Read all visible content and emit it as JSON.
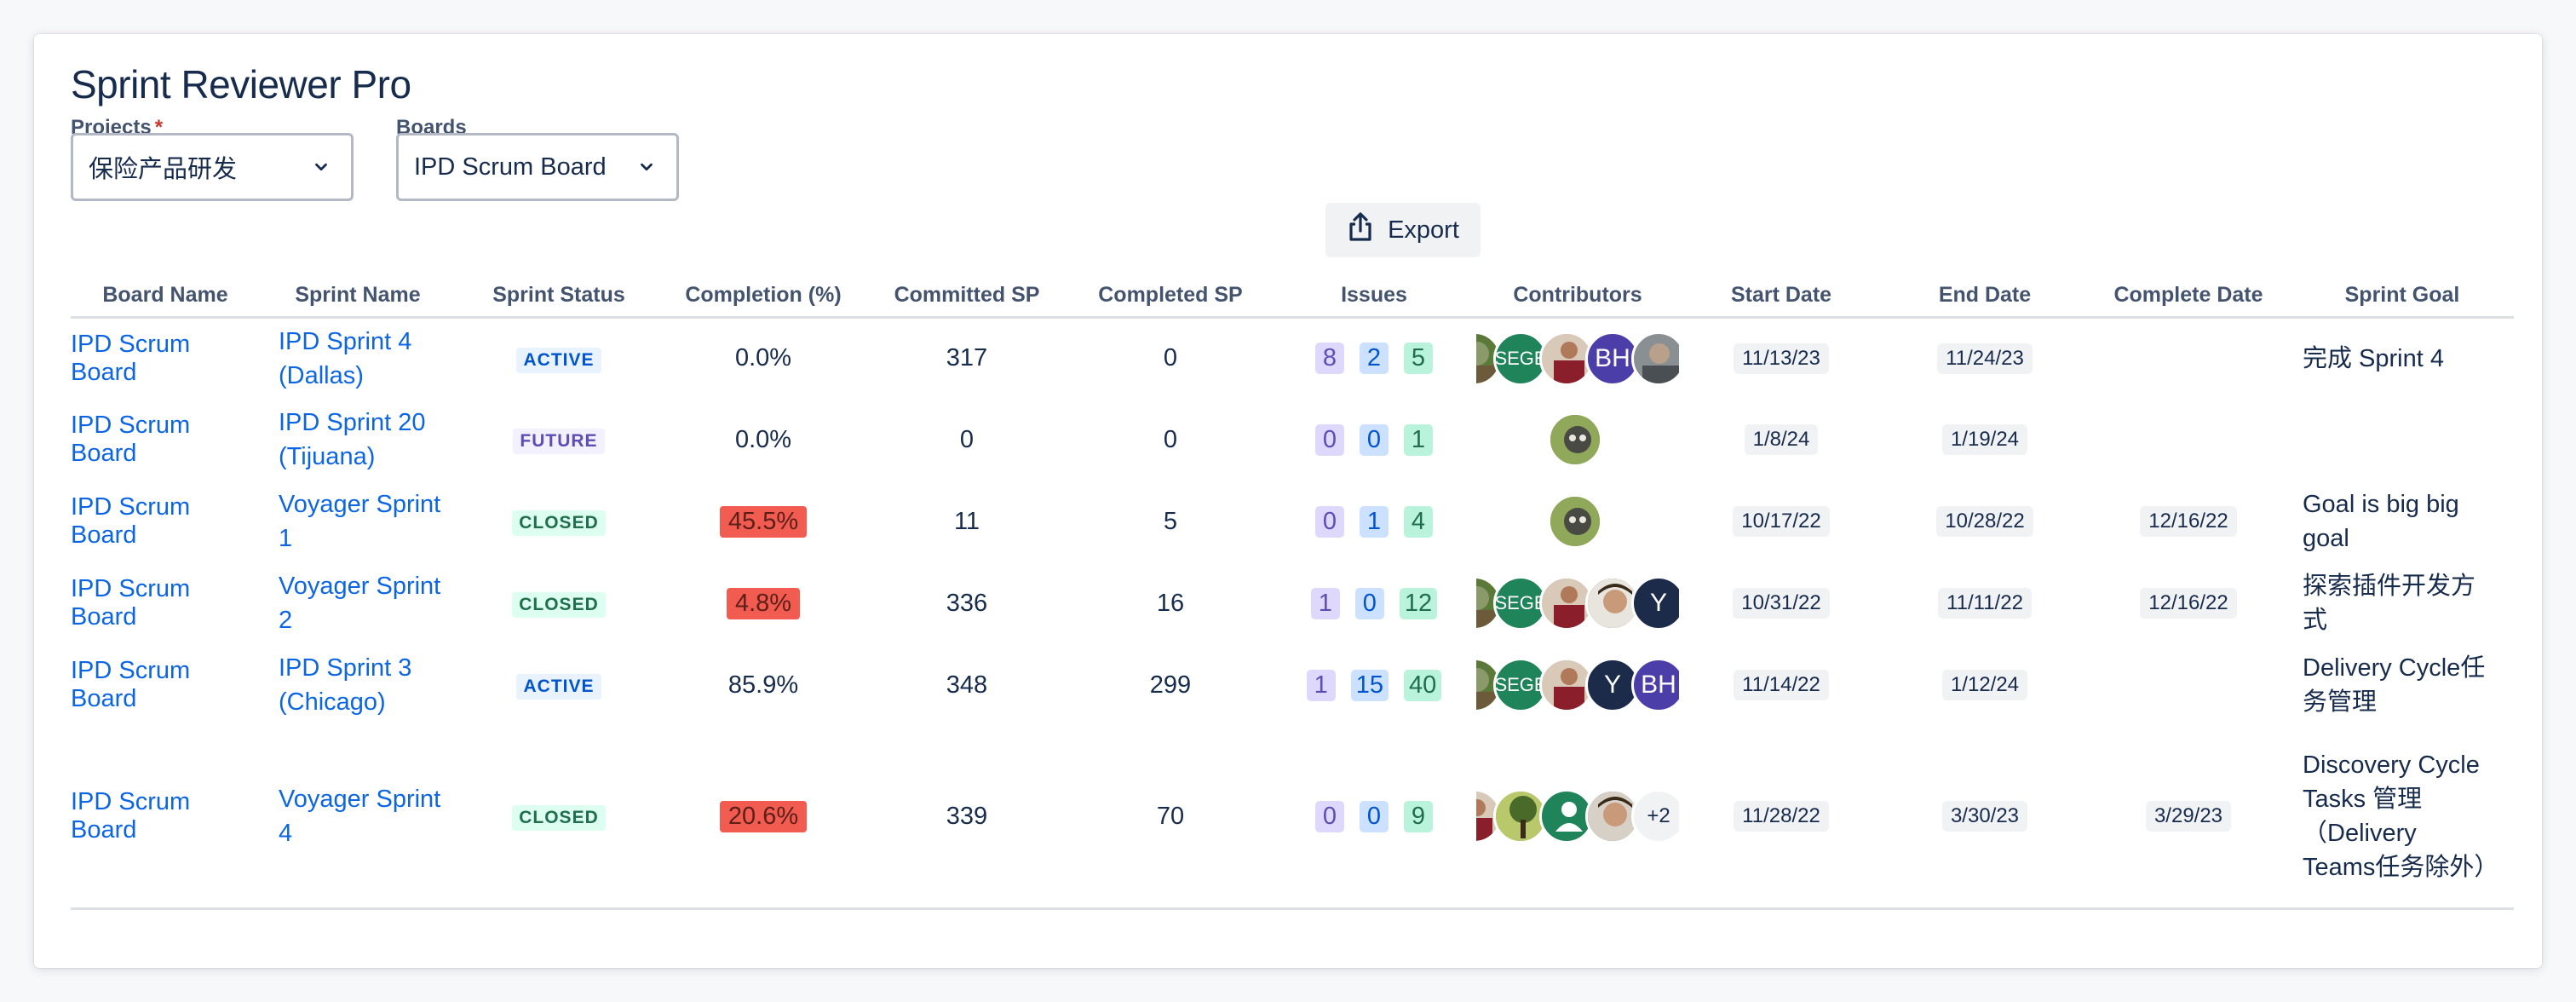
{
  "app": {
    "title": "Sprint Reviewer Pro"
  },
  "filters": {
    "projects_label": "Projects",
    "projects_required_mark": "*",
    "projects_value": "保险产品研发",
    "boards_label": "Boards",
    "boards_value": "IPD Scrum Board",
    "export_label": "Export"
  },
  "table": {
    "headers": [
      "Board Name",
      "Sprint Name",
      "Sprint Status",
      "Completion (%)",
      "Committed SP",
      "Completed SP",
      "Issues",
      "Contributors",
      "Start Date",
      "End Date",
      "Complete Date",
      "Sprint Goal"
    ],
    "rows": [
      {
        "board": "IPD Scrum Board",
        "sprint": "IPD Sprint 4 (Dallas)",
        "status": "ACTIVE",
        "completion": "0.0%",
        "committed": "317",
        "completed": "0",
        "issues": [
          "8",
          "2",
          "5"
        ],
        "contrib_labels": [
          "BH"
        ],
        "contrib_brand": "SEGE",
        "start": "11/13/23",
        "end": "11/24/23",
        "complete": "",
        "goal": "完成 Sprint 4"
      },
      {
        "board": "IPD Scrum Board",
        "sprint": "IPD Sprint 20 (Tijuana)",
        "status": "FUTURE",
        "completion": "0.0%",
        "committed": "0",
        "completed": "0",
        "issues": [
          "0",
          "0",
          "1"
        ],
        "start": "1/8/24",
        "end": "1/19/24",
        "complete": "",
        "goal": ""
      },
      {
        "board": "IPD Scrum Board",
        "sprint": "Voyager Sprint 1",
        "status": "CLOSED",
        "completion": "45.5%",
        "committed": "11",
        "completed": "5",
        "issues": [
          "0",
          "1",
          "4"
        ],
        "start": "10/17/22",
        "end": "10/28/22",
        "complete": "12/16/22",
        "goal": "Goal is big big goal"
      },
      {
        "board": "IPD Scrum Board",
        "sprint": "Voyager Sprint 2",
        "status": "CLOSED",
        "completion": "4.8%",
        "committed": "336",
        "completed": "16",
        "issues": [
          "1",
          "0",
          "12"
        ],
        "contrib_brand": "SEGE",
        "contrib_labels": [
          "Y"
        ],
        "start": "10/31/22",
        "end": "11/11/22",
        "complete": "12/16/22",
        "goal": "探索插件开发方式"
      },
      {
        "board": "IPD Scrum Board",
        "sprint": "IPD Sprint 3 (Chicago)",
        "status": "ACTIVE",
        "completion": "85.9%",
        "committed": "348",
        "completed": "299",
        "issues": [
          "1",
          "15",
          "40"
        ],
        "contrib_brand": "SEGE",
        "contrib_labels": [
          "Y",
          "BH"
        ],
        "start": "11/14/22",
        "end": "1/12/24",
        "complete": "",
        "goal": "Delivery Cycle任务管理"
      },
      {
        "board": "IPD Scrum Board",
        "sprint": "Voyager Sprint 4",
        "status": "CLOSED",
        "completion": "20.6%",
        "committed": "339",
        "completed": "70",
        "issues": [
          "0",
          "0",
          "9"
        ],
        "contrib_more": "+2",
        "start": "11/28/22",
        "end": "3/30/23",
        "complete": "3/29/23",
        "goal": "Discovery Cycle Tasks 管理（Delivery Teams任务除外）"
      }
    ]
  },
  "colors": {
    "link": "#0c66e4",
    "low_completion": "#f15b50",
    "brand_green": "#1f845a",
    "avatar_purple": "#4c3ea8",
    "avatar_navy": "#1c2b4a"
  }
}
